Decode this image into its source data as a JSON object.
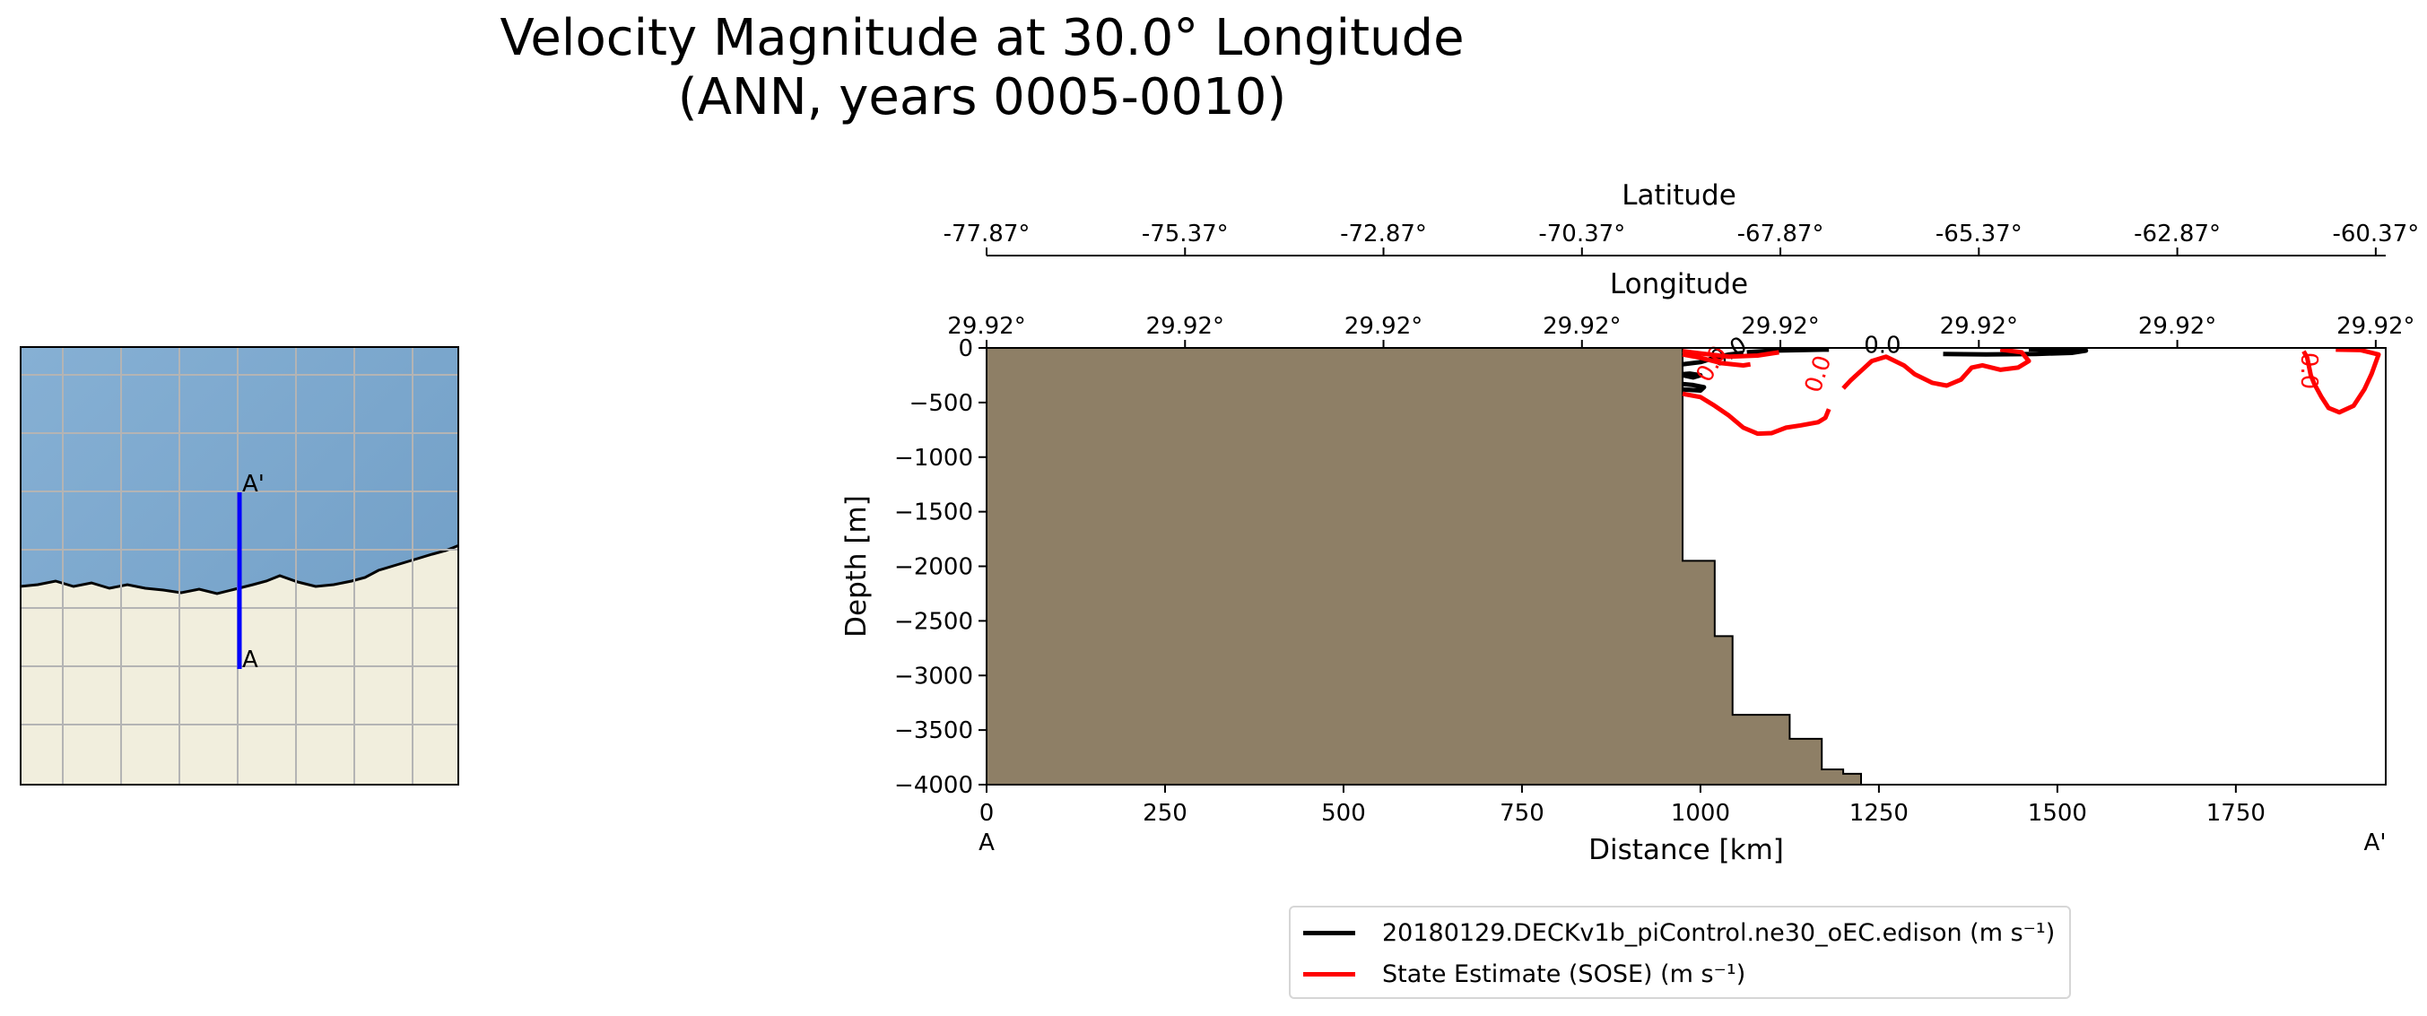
{
  "title_line1": "Velocity Magnitude at 30.0° Longitude",
  "title_line2": "(ANN, years 0005-0010)",
  "inset_map": {
    "label_start": "A",
    "label_end": "A'",
    "colors": {
      "ocean": "#7ea8cc",
      "land": "#f1eedd",
      "transect": "#0000ff",
      "grid": "#b4b4b4",
      "coast": "#000000"
    }
  },
  "chart_data": {
    "type": "line",
    "xlabel": "Distance [km]",
    "ylabel": "Depth [m]",
    "xlim": [
      0,
      1960
    ],
    "ylim": [
      -4000,
      0
    ],
    "xticks": [
      0,
      250,
      500,
      750,
      1000,
      1250,
      1500,
      1750
    ],
    "yticks": [
      0,
      -500,
      -1000,
      -1500,
      -2000,
      -2500,
      -3000,
      -3500,
      -4000
    ],
    "x_start_label": "A",
    "x_end_label": "A'",
    "top_axis_1": {
      "label": "Longitude",
      "ticks": [
        "29.92°",
        "29.92°",
        "29.92°",
        "29.92°",
        "29.92°",
        "29.92°",
        "29.92°",
        "29.92°"
      ],
      "tick_positions_km": [
        0,
        278,
        556,
        834,
        1112,
        1390,
        1668,
        1946
      ]
    },
    "top_axis_2": {
      "label": "Latitude",
      "ticks": [
        "-77.87°",
        "-75.37°",
        "-72.87°",
        "-70.37°",
        "-67.87°",
        "-65.37°",
        "-62.87°",
        "-60.37°"
      ],
      "tick_positions_km": [
        0,
        278,
        556,
        834,
        1112,
        1390,
        1668,
        1946
      ]
    },
    "bathymetry_color": "#8e7f66",
    "bathymetry": [
      [
        0,
        0
      ],
      [
        975,
        0
      ],
      [
        975,
        -1950
      ],
      [
        1020,
        -1950
      ],
      [
        1020,
        -2640
      ],
      [
        1045,
        -2640
      ],
      [
        1045,
        -3360
      ],
      [
        1125,
        -3360
      ],
      [
        1125,
        -3580
      ],
      [
        1170,
        -3580
      ],
      [
        1170,
        -3860
      ],
      [
        1200,
        -3860
      ],
      [
        1200,
        -3900
      ],
      [
        1225,
        -3900
      ],
      [
        1225,
        -4000
      ],
      [
        0,
        -4000
      ]
    ],
    "series": [
      {
        "name": "20180129.DECKv1b_piControl.ne30_oEC.edison (m s⁻¹)",
        "color": "#000000",
        "contours": [
          {
            "points": [
              [
                975,
                -150
              ],
              [
                1000,
                -130
              ],
              [
                1020,
                -90
              ],
              [
                1040,
                -60
              ],
              [
                1060,
                -45
              ]
            ],
            "label": "0.0",
            "label_at": [
              1045,
              -100
            ],
            "label_rotation": -30
          },
          {
            "points": [
              [
                1065,
                -40
              ],
              [
                1100,
                -25
              ],
              [
                1150,
                -18
              ],
              [
                1180,
                -15
              ]
            ]
          },
          {
            "points": [
              [
                975,
                -380
              ],
              [
                1000,
                -390
              ],
              [
                1005,
                -360
              ],
              [
                990,
                -340
              ],
              [
                975,
                -330
              ]
            ]
          },
          {
            "points": [
              [
                975,
                -250
              ],
              [
                990,
                -270
              ],
              [
                1000,
                -250
              ],
              [
                985,
                -235
              ],
              [
                975,
                -240
              ]
            ]
          },
          {
            "points": [
              [
                1340,
                -55
              ],
              [
                1400,
                -60
              ],
              [
                1470,
                -55
              ],
              [
                1520,
                -45
              ],
              [
                1540,
                -25
              ],
              [
                1510,
                -15
              ],
              [
                1460,
                -12
              ]
            ]
          }
        ],
        "free_labels": [
          {
            "text": "0.0",
            "at": [
              1255,
              -45
            ],
            "rotation": 0
          }
        ]
      },
      {
        "name": "State Estimate (SOSE) (m s⁻¹)",
        "color": "#ff0000",
        "contours": [
          {
            "points": [
              [
                975,
                -60
              ],
              [
                1000,
                -90
              ],
              [
                1030,
                -140
              ],
              [
                1060,
                -160
              ],
              [
                1070,
                -150
              ]
            ],
            "label": "0.0",
            "label_at": [
              1025,
              -180
            ],
            "label_rotation": -60
          },
          {
            "points": [
              [
                975,
                -30
              ],
              [
                1000,
                -50
              ],
              [
                1040,
                -80
              ],
              [
                1080,
                -70
              ],
              [
                1110,
                -40
              ]
            ]
          },
          {
            "points": [
              [
                975,
                -420
              ],
              [
                1000,
                -450
              ],
              [
                1020,
                -530
              ],
              [
                1040,
                -620
              ],
              [
                1060,
                -730
              ],
              [
                1080,
                -785
              ],
              [
                1100,
                -780
              ],
              [
                1120,
                -730
              ],
              [
                1140,
                -710
              ],
              [
                1165,
                -680
              ],
              [
                1175,
                -640
              ],
              [
                1180,
                -560
              ]
            ]
          },
          {
            "points": [
              [
                1200,
                -370
              ],
              [
                1210,
                -300
              ],
              [
                1220,
                -240
              ],
              [
                1230,
                -180
              ],
              [
                1240,
                -120
              ],
              [
                1260,
                -80
              ],
              [
                1285,
                -160
              ],
              [
                1300,
                -240
              ],
              [
                1325,
                -320
              ],
              [
                1345,
                -345
              ],
              [
                1365,
                -290
              ],
              [
                1380,
                -180
              ],
              [
                1395,
                -160
              ],
              [
                1420,
                -200
              ],
              [
                1445,
                -180
              ],
              [
                1460,
                -120
              ],
              [
                1450,
                -40
              ],
              [
                1420,
                -15
              ]
            ],
            "label": "0.0",
            "label_at": [
              1175,
              -260
            ],
            "label_rotation": -72
          },
          {
            "points": [
              [
                1845,
                -30
              ],
              [
                1850,
                -90
              ],
              [
                1855,
                -250
              ],
              [
                1860,
                -330
              ],
              [
                1870,
                -450
              ],
              [
                1880,
                -550
              ],
              [
                1895,
                -590
              ],
              [
                1915,
                -530
              ],
              [
                1930,
                -380
              ],
              [
                1940,
                -240
              ],
              [
                1950,
                -60
              ],
              [
                1925,
                -20
              ],
              [
                1890,
                -15
              ]
            ],
            "label": "0.0",
            "label_at": [
              1842,
              -210
            ],
            "label_rotation": 90
          }
        ],
        "free_labels": []
      }
    ],
    "legend_location": "lower center"
  }
}
